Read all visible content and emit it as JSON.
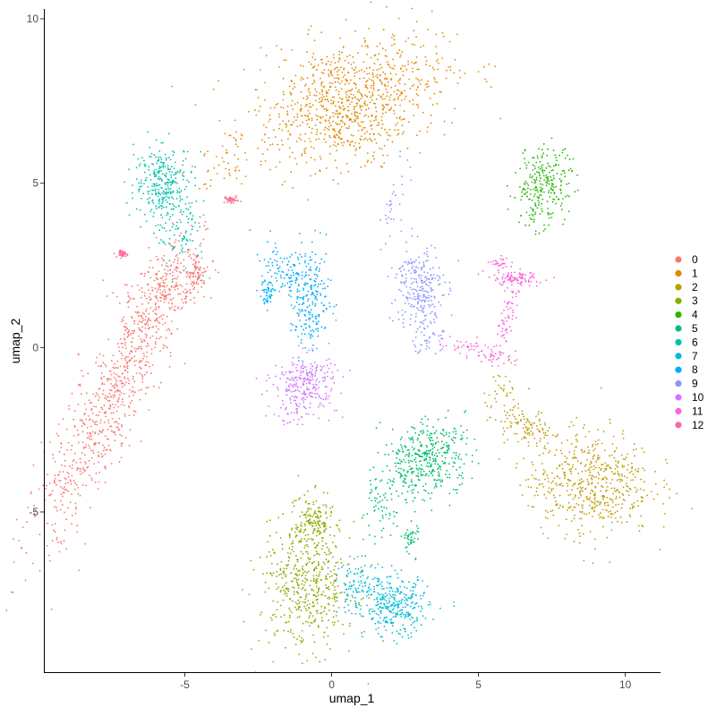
{
  "chart_data": {
    "type": "scatter",
    "xlabel": "umap_1",
    "ylabel": "umap_2",
    "xlim": [
      -9.8,
      11.2
    ],
    "ylim": [
      -9.9,
      10.3
    ],
    "xticks": [
      -5,
      0,
      5,
      10
    ],
    "yticks": [
      -5,
      0,
      5,
      10
    ],
    "xtick_labels": [
      "-5",
      "0",
      "5",
      "10"
    ],
    "ytick_labels": [
      "-5",
      "0",
      "5",
      "10"
    ],
    "grid": false,
    "legend": "right",
    "series": [
      {
        "name": "0",
        "color": "#F8766D",
        "n_points": 1100,
        "regions": [
          {
            "cx": -7.5,
            "cy": -1.5,
            "sx": 0.55,
            "sy": 2.6,
            "rot": -28,
            "w": 0.72
          },
          {
            "cx": -5.6,
            "cy": 1.8,
            "sx": 0.45,
            "sy": 0.8,
            "rot": -50,
            "w": 0.18
          },
          {
            "cx": -4.6,
            "cy": 2.3,
            "sx": 0.15,
            "sy": 0.3,
            "rot": 0,
            "w": 0.06
          },
          {
            "cx": -7.1,
            "cy": 2.85,
            "sx": 0.08,
            "sy": 0.05,
            "rot": 0,
            "w": 0.02
          },
          {
            "cx": -3.4,
            "cy": 4.5,
            "sx": 0.12,
            "sy": 0.05,
            "rot": 0,
            "w": 0.02
          }
        ]
      },
      {
        "name": "1",
        "color": "#E18A00",
        "n_points": 1000,
        "regions": [
          {
            "cx": 0.6,
            "cy": 7.6,
            "sx": 1.7,
            "sy": 0.9,
            "rot": 15,
            "w": 0.85
          },
          {
            "cx": 0.9,
            "cy": 6.6,
            "sx": 0.8,
            "sy": 0.5,
            "rot": 0,
            "w": 0.1
          },
          {
            "cx": -3.6,
            "cy": 5.6,
            "sx": 0.9,
            "sy": 0.35,
            "rot": 25,
            "w": 0.05
          }
        ]
      },
      {
        "name": "2",
        "color": "#BE9C00",
        "n_points": 700,
        "regions": [
          {
            "cx": 8.8,
            "cy": -4.1,
            "sx": 1.05,
            "sy": 0.8,
            "rot": 0,
            "w": 0.8
          },
          {
            "cx": 6.6,
            "cy": -2.4,
            "sx": 0.45,
            "sy": 0.3,
            "rot": -20,
            "w": 0.15
          },
          {
            "cx": 5.8,
            "cy": -1.3,
            "sx": 0.3,
            "sy": 0.35,
            "rot": 0,
            "w": 0.05
          }
        ]
      },
      {
        "name": "3",
        "color": "#8CAB00",
        "n_points": 650,
        "regions": [
          {
            "cx": -0.8,
            "cy": -7.2,
            "sx": 0.8,
            "sy": 1.0,
            "rot": 0,
            "w": 0.8
          },
          {
            "cx": -0.6,
            "cy": -5.3,
            "sx": 0.3,
            "sy": 0.4,
            "rot": 0,
            "w": 0.2
          }
        ]
      },
      {
        "name": "4",
        "color": "#24B700",
        "n_points": 260,
        "regions": [
          {
            "cx": 7.2,
            "cy": 4.9,
            "sx": 0.45,
            "sy": 0.6,
            "rot": -20,
            "w": 1.0
          }
        ]
      },
      {
        "name": "5",
        "color": "#00BE70",
        "n_points": 520,
        "regions": [
          {
            "cx": 3.2,
            "cy": -3.4,
            "sx": 0.75,
            "sy": 0.55,
            "rot": 25,
            "w": 0.8
          },
          {
            "cx": 1.6,
            "cy": -4.9,
            "sx": 0.3,
            "sy": 0.45,
            "rot": 0,
            "w": 0.12
          },
          {
            "cx": 2.7,
            "cy": -5.8,
            "sx": 0.15,
            "sy": 0.25,
            "rot": 0,
            "w": 0.08
          }
        ]
      },
      {
        "name": "6",
        "color": "#00C1AB",
        "n_points": 380,
        "regions": [
          {
            "cx": -5.7,
            "cy": 5.0,
            "sx": 0.5,
            "sy": 0.55,
            "rot": 0,
            "w": 0.8
          },
          {
            "cx": -5.1,
            "cy": 3.4,
            "sx": 0.4,
            "sy": 0.5,
            "rot": 0,
            "w": 0.2
          }
        ]
      },
      {
        "name": "7",
        "color": "#00BBDA",
        "n_points": 420,
        "regions": [
          {
            "cx": 2.2,
            "cy": -7.9,
            "sx": 0.55,
            "sy": 0.45,
            "rot": 0,
            "w": 0.7
          },
          {
            "cx": 1.0,
            "cy": -7.3,
            "sx": 0.5,
            "sy": 0.4,
            "rot": 0,
            "w": 0.3
          }
        ]
      },
      {
        "name": "8",
        "color": "#00ACFC",
        "n_points": 360,
        "regions": [
          {
            "cx": -0.7,
            "cy": 1.5,
            "sx": 0.35,
            "sy": 0.8,
            "rot": 0,
            "w": 0.6
          },
          {
            "cx": -1.6,
            "cy": 2.3,
            "sx": 0.55,
            "sy": 0.25,
            "rot": -55,
            "w": 0.25
          },
          {
            "cx": -2.2,
            "cy": 1.7,
            "sx": 0.15,
            "sy": 0.2,
            "rot": 0,
            "w": 0.15
          }
        ]
      },
      {
        "name": "9",
        "color": "#8B93FF",
        "n_points": 330,
        "regions": [
          {
            "cx": 3.0,
            "cy": 1.8,
            "sx": 0.4,
            "sy": 0.7,
            "rot": 0,
            "w": 0.8
          },
          {
            "cx": 3.3,
            "cy": 0.2,
            "sx": 0.25,
            "sy": 0.25,
            "rot": 0,
            "w": 0.1
          },
          {
            "cx": 2.1,
            "cy": 4.4,
            "sx": 0.2,
            "sy": 0.7,
            "rot": -10,
            "w": 0.1
          }
        ]
      },
      {
        "name": "10",
        "color": "#D575FE",
        "n_points": 300,
        "regions": [
          {
            "cx": -0.9,
            "cy": -1.1,
            "sx": 0.55,
            "sy": 0.45,
            "rot": 0,
            "w": 0.9
          },
          {
            "cx": -1.4,
            "cy": -2.0,
            "sx": 0.3,
            "sy": 0.2,
            "rot": 0,
            "w": 0.1
          }
        ]
      },
      {
        "name": "11",
        "color": "#F962DD",
        "n_points": 260,
        "regions": [
          {
            "cx": 6.2,
            "cy": 2.1,
            "sx": 0.5,
            "sy": 0.1,
            "rot": 0,
            "w": 0.35
          },
          {
            "cx": 6.0,
            "cy": 1.0,
            "sx": 0.12,
            "sy": 0.6,
            "rot": -15,
            "w": 0.25
          },
          {
            "cx": 5.0,
            "cy": -0.1,
            "sx": 0.6,
            "sy": 0.15,
            "rot": -15,
            "w": 0.3
          },
          {
            "cx": 5.8,
            "cy": 2.6,
            "sx": 0.2,
            "sy": 0.1,
            "rot": 0,
            "w": 0.1
          }
        ]
      },
      {
        "name": "12",
        "color": "#FF65AC",
        "n_points": 40,
        "regions": [
          {
            "cx": -7.1,
            "cy": 2.85,
            "sx": 0.08,
            "sy": 0.05,
            "rot": 0,
            "w": 0.5
          },
          {
            "cx": -3.45,
            "cy": 4.5,
            "sx": 0.1,
            "sy": 0.05,
            "rot": 0,
            "w": 0.5
          }
        ]
      }
    ]
  }
}
